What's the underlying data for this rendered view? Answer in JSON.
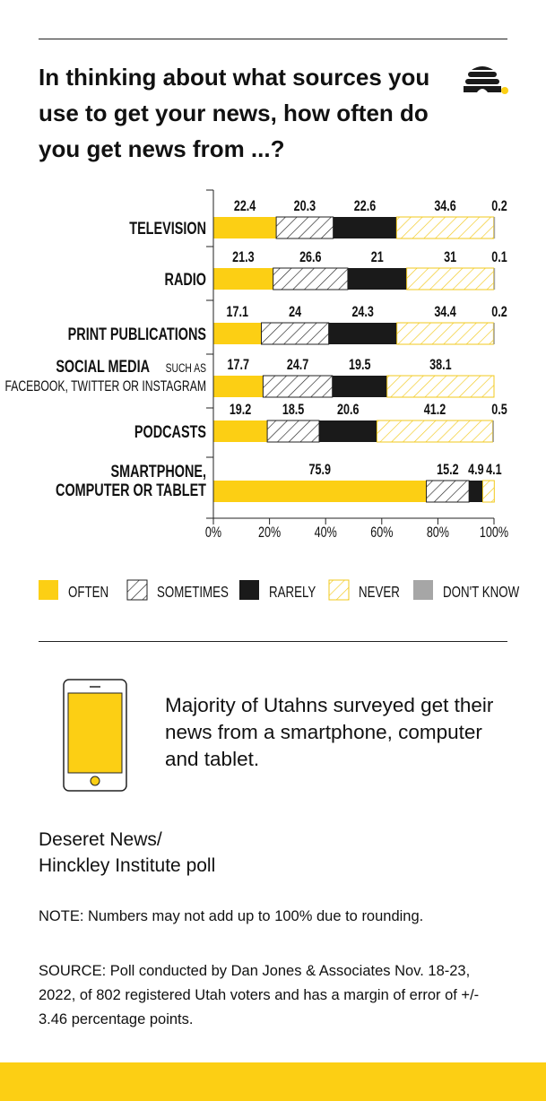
{
  "header": {
    "title": "In thinking about what sources you use to get your news, how often do you get news from ...?",
    "logo": "beehive-logo"
  },
  "colors": {
    "often": "#fccf14",
    "sometimes": "#222222",
    "rarely": "#1a1a1a",
    "never": "#f2c91c",
    "dont_know": "#a6a6a6"
  },
  "chart_data": {
    "type": "bar",
    "orientation": "horizontal-stacked-100",
    "categories": [
      {
        "main": "TELEVISION",
        "sub": ""
      },
      {
        "main": "RADIO",
        "sub": ""
      },
      {
        "main": "PRINT PUBLICATIONS",
        "sub": ""
      },
      {
        "main": "SOCIAL MEDIA",
        "suffix": "SUCH AS",
        "sub": "FACEBOOK, TWITTER OR INSTAGRAM"
      },
      {
        "main": "PODCASTS",
        "sub": ""
      },
      {
        "main": "SMARTPHONE,",
        "sub": "COMPUTER OR TABLET"
      }
    ],
    "series": [
      {
        "name": "OFTEN",
        "values": [
          22.4,
          21.3,
          17.1,
          17.7,
          19.2,
          75.9
        ]
      },
      {
        "name": "SOMETIMES",
        "values": [
          20.3,
          26.6,
          24,
          24.7,
          18.5,
          15.2
        ]
      },
      {
        "name": "RARELY",
        "values": [
          22.6,
          21,
          24.3,
          19.5,
          20.6,
          4.9
        ]
      },
      {
        "name": "NEVER",
        "values": [
          34.6,
          31,
          34.4,
          38.1,
          41.2,
          4.1
        ]
      },
      {
        "name": "DON'T KNOW",
        "values": [
          0.2,
          0.1,
          0.2,
          null,
          0.5,
          null
        ]
      }
    ],
    "data_labels": [
      [
        "22.4",
        "20.3",
        "22.6",
        "34.6",
        "0.2"
      ],
      [
        "21.3",
        "26.6",
        "21",
        "31",
        "0.1"
      ],
      [
        "17.1",
        "24",
        "24.3",
        "34.4",
        "0.2"
      ],
      [
        "17.7",
        "24.7",
        "19.5",
        "38.1",
        ""
      ],
      [
        "19.2",
        "18.5",
        "20.6",
        "41.2",
        "0.5"
      ],
      [
        "75.9",
        "15.2",
        "4.9",
        "4.1",
        ""
      ]
    ],
    "xlim": [
      0,
      100
    ],
    "x_ticks": [
      "0%",
      "20%",
      "40%",
      "60%",
      "80%",
      "100%"
    ],
    "legend_position": "bottom",
    "grid": false
  },
  "callout": {
    "icon": "smartphone-icon",
    "text": "Majority of Utahns surveyed get their news from a smartphone, computer and tablet."
  },
  "credit": {
    "line1": "Deseret News/",
    "line2": "Hinckley Institute poll"
  },
  "note": "NOTE: Numbers may not add up to 100% due to rounding.",
  "source": "SOURCE: Poll conducted by Dan Jones & Associates Nov. 18-23, 2022, of 802 registered Utah voters and has a margin of error of +/- 3.46 percentage points."
}
